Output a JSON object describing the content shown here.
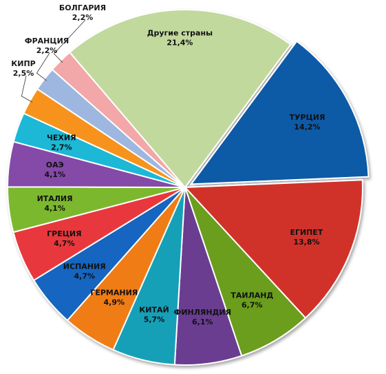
{
  "chart_data": {
    "type": "pie",
    "title": "",
    "slices": [
      {
        "label": "ТУРЦИЯ",
        "value": 14.2,
        "value_label": "14,2%",
        "color": "#0e5aa7",
        "exploded": true
      },
      {
        "label": "ЕГИПЕТ",
        "value": 13.8,
        "value_label": "13,8%",
        "color": "#d0302b",
        "exploded": false
      },
      {
        "label": "ТАИЛАНД",
        "value": 6.7,
        "value_label": "6,7%",
        "color": "#6b9e1f",
        "exploded": false
      },
      {
        "label": "ФИНЛЯНДИЯ",
        "value": 6.1,
        "value_label": "6,1%",
        "color": "#6a3d91",
        "exploded": false
      },
      {
        "label": "КИТАЙ",
        "value": 5.7,
        "value_label": "5,7%",
        "color": "#12a0b8",
        "exploded": false
      },
      {
        "label": "ГЕРМАНИЯ",
        "value": 4.9,
        "value_label": "4,9%",
        "color": "#f07c12",
        "exploded": false
      },
      {
        "label": "ИСПАНИЯ",
        "value": 4.7,
        "value_label": "4,7%",
        "color": "#1565c0",
        "exploded": false
      },
      {
        "label": "ГРЕЦИЯ",
        "value": 4.7,
        "value_label": "4,7%",
        "color": "#e8383d",
        "exploded": false
      },
      {
        "label": "ИТАЛИЯ",
        "value": 4.1,
        "value_label": "4,1%",
        "color": "#7cb82f",
        "exploded": false
      },
      {
        "label": "ОАЭ",
        "value": 4.1,
        "value_label": "4,1%",
        "color": "#8548a8",
        "exploded": false
      },
      {
        "label": "ЧЕХИЯ",
        "value": 2.7,
        "value_label": "2,7%",
        "color": "#1ab8d6",
        "exploded": false
      },
      {
        "label": "КИПР",
        "value": 2.5,
        "value_label": "2,5%",
        "color": "#f7931e",
        "exploded": false
      },
      {
        "label": "ФРАНЦИЯ",
        "value": 2.2,
        "value_label": "2,2%",
        "color": "#9db7e0",
        "exploded": false
      },
      {
        "label": "БОЛГАРИЯ",
        "value": 2.2,
        "value_label": "2,2%",
        "color": "#f2a7a8",
        "exploded": false
      },
      {
        "label": "Другие страны",
        "value": 21.4,
        "value_label": "21,4%",
        "color": "#c2d99e",
        "exploded": false
      }
    ]
  }
}
